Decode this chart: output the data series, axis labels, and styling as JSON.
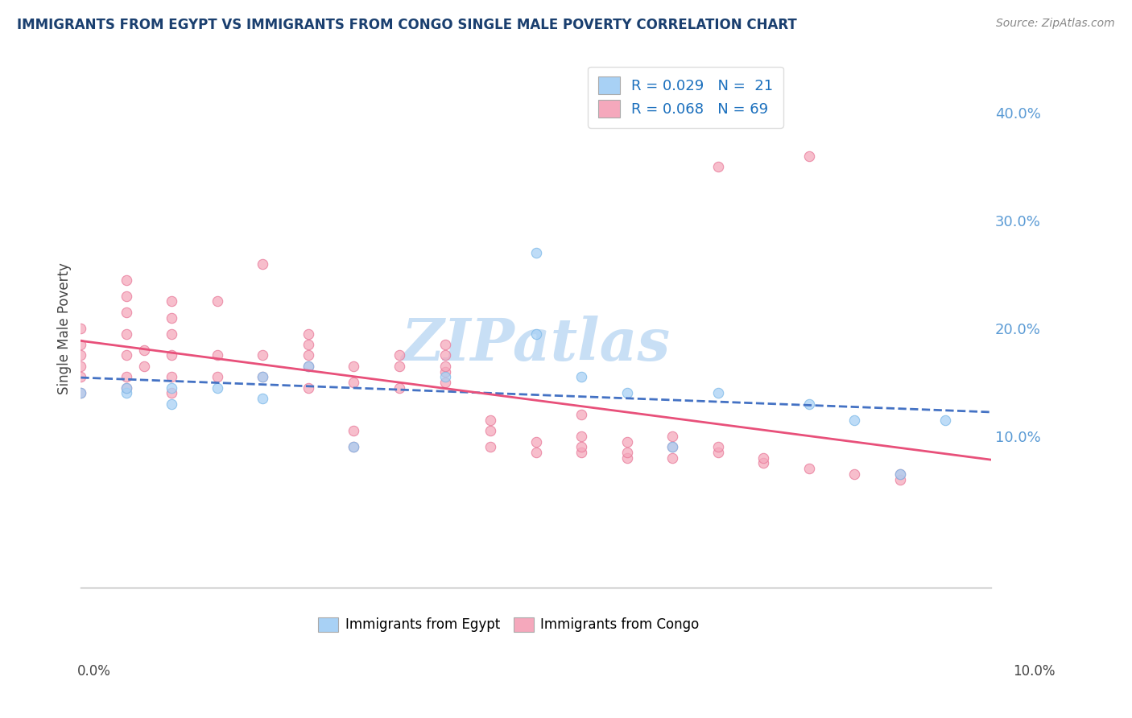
{
  "title": "IMMIGRANTS FROM EGYPT VS IMMIGRANTS FROM CONGO SINGLE MALE POVERTY CORRELATION CHART",
  "source": "Source: ZipAtlas.com",
  "ylabel": "Single Male Poverty",
  "xlim": [
    0.0,
    0.1
  ],
  "ylim": [
    -0.04,
    0.44
  ],
  "legend_egypt_R": "R = 0.029",
  "legend_egypt_N": "N =  21",
  "legend_congo_R": "R = 0.068",
  "legend_congo_N": "N = 69",
  "egypt_color": "#a8d1f5",
  "egypt_edge_color": "#7bb8e8",
  "congo_color": "#f5a8bc",
  "congo_edge_color": "#e87898",
  "egypt_line_color": "#4472c4",
  "egypt_line_style": "--",
  "congo_line_color": "#e8507a",
  "congo_line_style": "-",
  "watermark": "ZIPatlas",
  "watermark_color": "#c8dff5",
  "right_yticks": [
    0.1,
    0.2,
    0.3,
    0.4
  ],
  "right_yticklabels": [
    "10.0%",
    "20.0%",
    "30.0%",
    "40.0%"
  ],
  "egypt_x": [
    0.0,
    0.005,
    0.005,
    0.01,
    0.01,
    0.015,
    0.02,
    0.02,
    0.025,
    0.03,
    0.04,
    0.05,
    0.05,
    0.055,
    0.06,
    0.065,
    0.07,
    0.08,
    0.085,
    0.09,
    0.095
  ],
  "egypt_y": [
    0.14,
    0.14,
    0.145,
    0.13,
    0.145,
    0.145,
    0.155,
    0.135,
    0.165,
    0.09,
    0.155,
    0.27,
    0.195,
    0.155,
    0.14,
    0.09,
    0.14,
    0.13,
    0.115,
    0.065,
    0.115
  ],
  "congo_x": [
    0.0,
    0.0,
    0.0,
    0.0,
    0.0,
    0.0,
    0.005,
    0.005,
    0.005,
    0.005,
    0.005,
    0.005,
    0.005,
    0.007,
    0.007,
    0.01,
    0.01,
    0.01,
    0.01,
    0.01,
    0.01,
    0.015,
    0.015,
    0.015,
    0.02,
    0.02,
    0.02,
    0.025,
    0.025,
    0.025,
    0.025,
    0.025,
    0.03,
    0.03,
    0.03,
    0.03,
    0.035,
    0.035,
    0.035,
    0.04,
    0.04,
    0.04,
    0.04,
    0.04,
    0.045,
    0.045,
    0.045,
    0.05,
    0.05,
    0.055,
    0.055,
    0.055,
    0.055,
    0.06,
    0.06,
    0.06,
    0.065,
    0.065,
    0.065,
    0.07,
    0.07,
    0.07,
    0.075,
    0.075,
    0.08,
    0.08,
    0.085,
    0.09,
    0.09
  ],
  "congo_y": [
    0.14,
    0.155,
    0.165,
    0.175,
    0.185,
    0.2,
    0.145,
    0.155,
    0.175,
    0.195,
    0.215,
    0.23,
    0.245,
    0.165,
    0.18,
    0.14,
    0.155,
    0.175,
    0.195,
    0.21,
    0.225,
    0.155,
    0.175,
    0.225,
    0.155,
    0.175,
    0.26,
    0.145,
    0.165,
    0.175,
    0.185,
    0.195,
    0.09,
    0.105,
    0.15,
    0.165,
    0.145,
    0.165,
    0.175,
    0.15,
    0.16,
    0.165,
    0.175,
    0.185,
    0.09,
    0.105,
    0.115,
    0.085,
    0.095,
    0.085,
    0.09,
    0.1,
    0.12,
    0.08,
    0.085,
    0.095,
    0.08,
    0.09,
    0.1,
    0.085,
    0.09,
    0.35,
    0.075,
    0.08,
    0.07,
    0.36,
    0.065,
    0.06,
    0.065
  ]
}
